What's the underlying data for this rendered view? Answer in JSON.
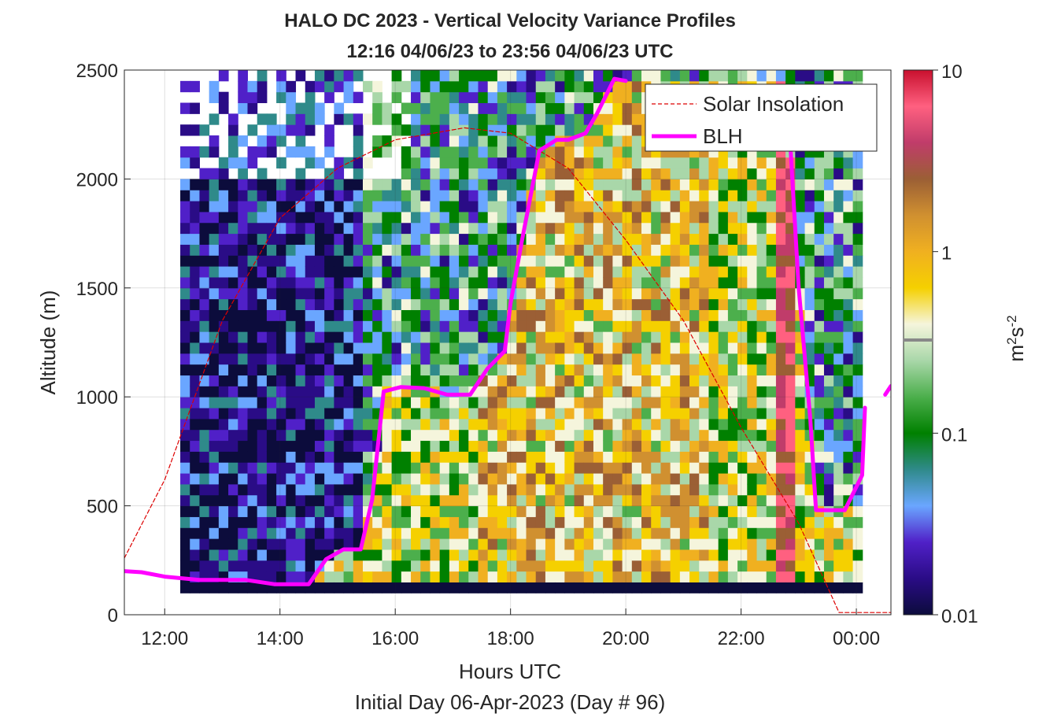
{
  "chart_data": {
    "type": "heatmap",
    "title": "HALO DC 2023 - Vertical Velocity Variance Profiles",
    "subtitle": "12:16 04/06/23 to 23:56 04/06/23  UTC",
    "xlabel": "Hours UTC",
    "xlabel2": "Initial Day 06-Apr-2023 (Day # 96)",
    "ylabel": "Altitude (m)",
    "colorbar_label_base": "m",
    "colorbar_label_sup1": "2",
    "colorbar_label_mid": "s",
    "colorbar_label_sup2": "-2",
    "x_range_hours": [
      11.3,
      24.6
    ],
    "ylim": [
      0,
      2500
    ],
    "x_ticks": [
      {
        "value": 12,
        "label": "12:00"
      },
      {
        "value": 14,
        "label": "14:00"
      },
      {
        "value": 16,
        "label": "16:00"
      },
      {
        "value": 18,
        "label": "18:00"
      },
      {
        "value": 20,
        "label": "20:00"
      },
      {
        "value": 22,
        "label": "22:00"
      },
      {
        "value": 24,
        "label": "00:00"
      }
    ],
    "y_ticks": [
      0,
      500,
      1000,
      1500,
      2000,
      2500
    ],
    "colorbar": {
      "scale": "log",
      "range": [
        0.01,
        10
      ],
      "ticks": [
        {
          "value": 0.01,
          "label": "0.01"
        },
        {
          "value": 0.1,
          "label": "0.1"
        },
        {
          "value": 1,
          "label": "1"
        },
        {
          "value": 10,
          "label": "10"
        }
      ],
      "colors": [
        "#0c0c3c",
        "#2a0c86",
        "#5020c8",
        "#6aa6ff",
        "#2f8a8a",
        "#008000",
        "#4caf4c",
        "#a9d7a9",
        "#f5f5dc",
        "#f5d000",
        "#f0b020",
        "#d09030",
        "#9b5f35",
        "#c03c6a",
        "#ff6080",
        "#c8102e"
      ]
    },
    "heatmap_grid": {
      "time_start_hours": 12.27,
      "time_step_hours": 0.1667,
      "columns": 71,
      "altitude_start_m": 100,
      "altitude_step_m": 50,
      "rows": 48
    },
    "series": [
      {
        "name": "Solar Insolation",
        "color": "#dd0000",
        "style": "dashed",
        "x": [
          11.3,
          12.0,
          13.0,
          14.0,
          15.0,
          16.0,
          17.2,
          18.0,
          19.0,
          20.0,
          21.0,
          22.0,
          23.0,
          23.7,
          24.6
        ],
        "y": [
          260,
          620,
          1350,
          1820,
          2050,
          2180,
          2235,
          2210,
          2050,
          1720,
          1350,
          860,
          420,
          10,
          10
        ]
      },
      {
        "name": "BLH",
        "color": "#ff00ff",
        "style": "solid",
        "x": [
          11.3,
          11.6,
          12.0,
          12.6,
          13.4,
          13.9,
          14.5,
          14.8,
          15.1,
          15.4,
          15.6,
          15.8,
          16.1,
          16.5,
          16.9,
          17.3,
          17.6,
          17.9,
          18.0,
          18.2,
          18.5,
          18.8,
          19.0,
          19.3,
          19.5,
          19.8,
          20.0
        ],
        "y": [
          200,
          195,
          175,
          160,
          160,
          140,
          140,
          255,
          300,
          300,
          530,
          1025,
          1045,
          1040,
          1010,
          1010,
          1130,
          1210,
          1430,
          1720,
          2130,
          2180,
          2180,
          2210,
          2300,
          2460,
          2450
        ]
      },
      {
        "name": "BLH",
        "color": "#ff00ff",
        "style": "solid",
        "x": [
          22.75,
          22.8,
          22.85,
          23.0,
          23.2,
          23.3,
          23.4,
          23.8,
          24.1,
          24.15
        ],
        "y": [
          2400,
          2300,
          2180,
          1500,
          900,
          480,
          480,
          480,
          640,
          950
        ]
      },
      {
        "name": "BLH",
        "color": "#ff00ff",
        "style": "solid",
        "x": [
          24.5,
          24.6
        ],
        "y": [
          1010,
          1050
        ]
      }
    ],
    "legend": {
      "position": "top-right",
      "entries": [
        "Solar Insolation",
        "BLH"
      ]
    },
    "grid": true
  }
}
